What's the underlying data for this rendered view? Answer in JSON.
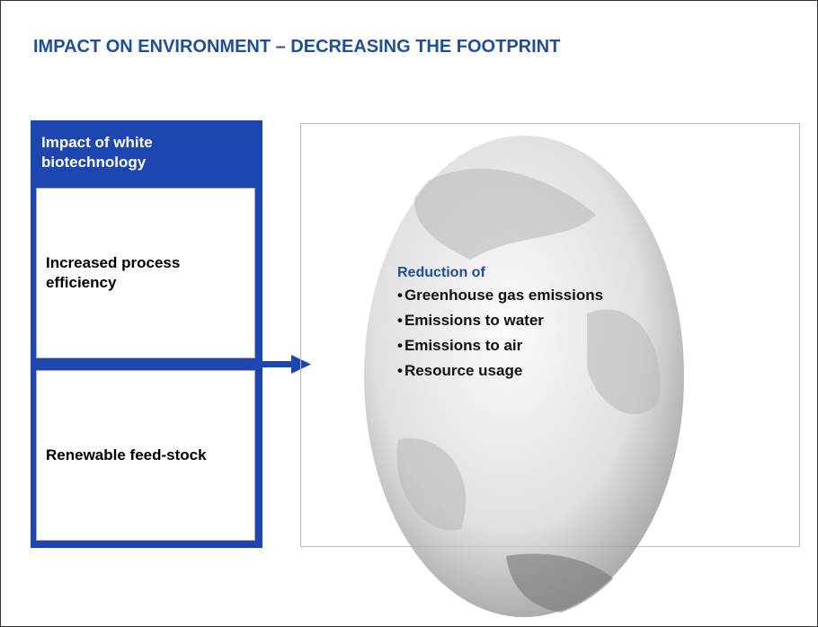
{
  "title": "IMPACT ON ENVIRONMENT – DECREASING THE FOOTPRINT",
  "left_panel": {
    "header": "Impact of white biotechnology",
    "items": [
      "Increased process efficiency",
      "Renewable feed-stock"
    ]
  },
  "right_panel": {
    "heading": "Reduction of",
    "bullets": [
      "Greenhouse gas emissions",
      "Emissions to water",
      "Emissions to air",
      "Resource usage"
    ]
  }
}
